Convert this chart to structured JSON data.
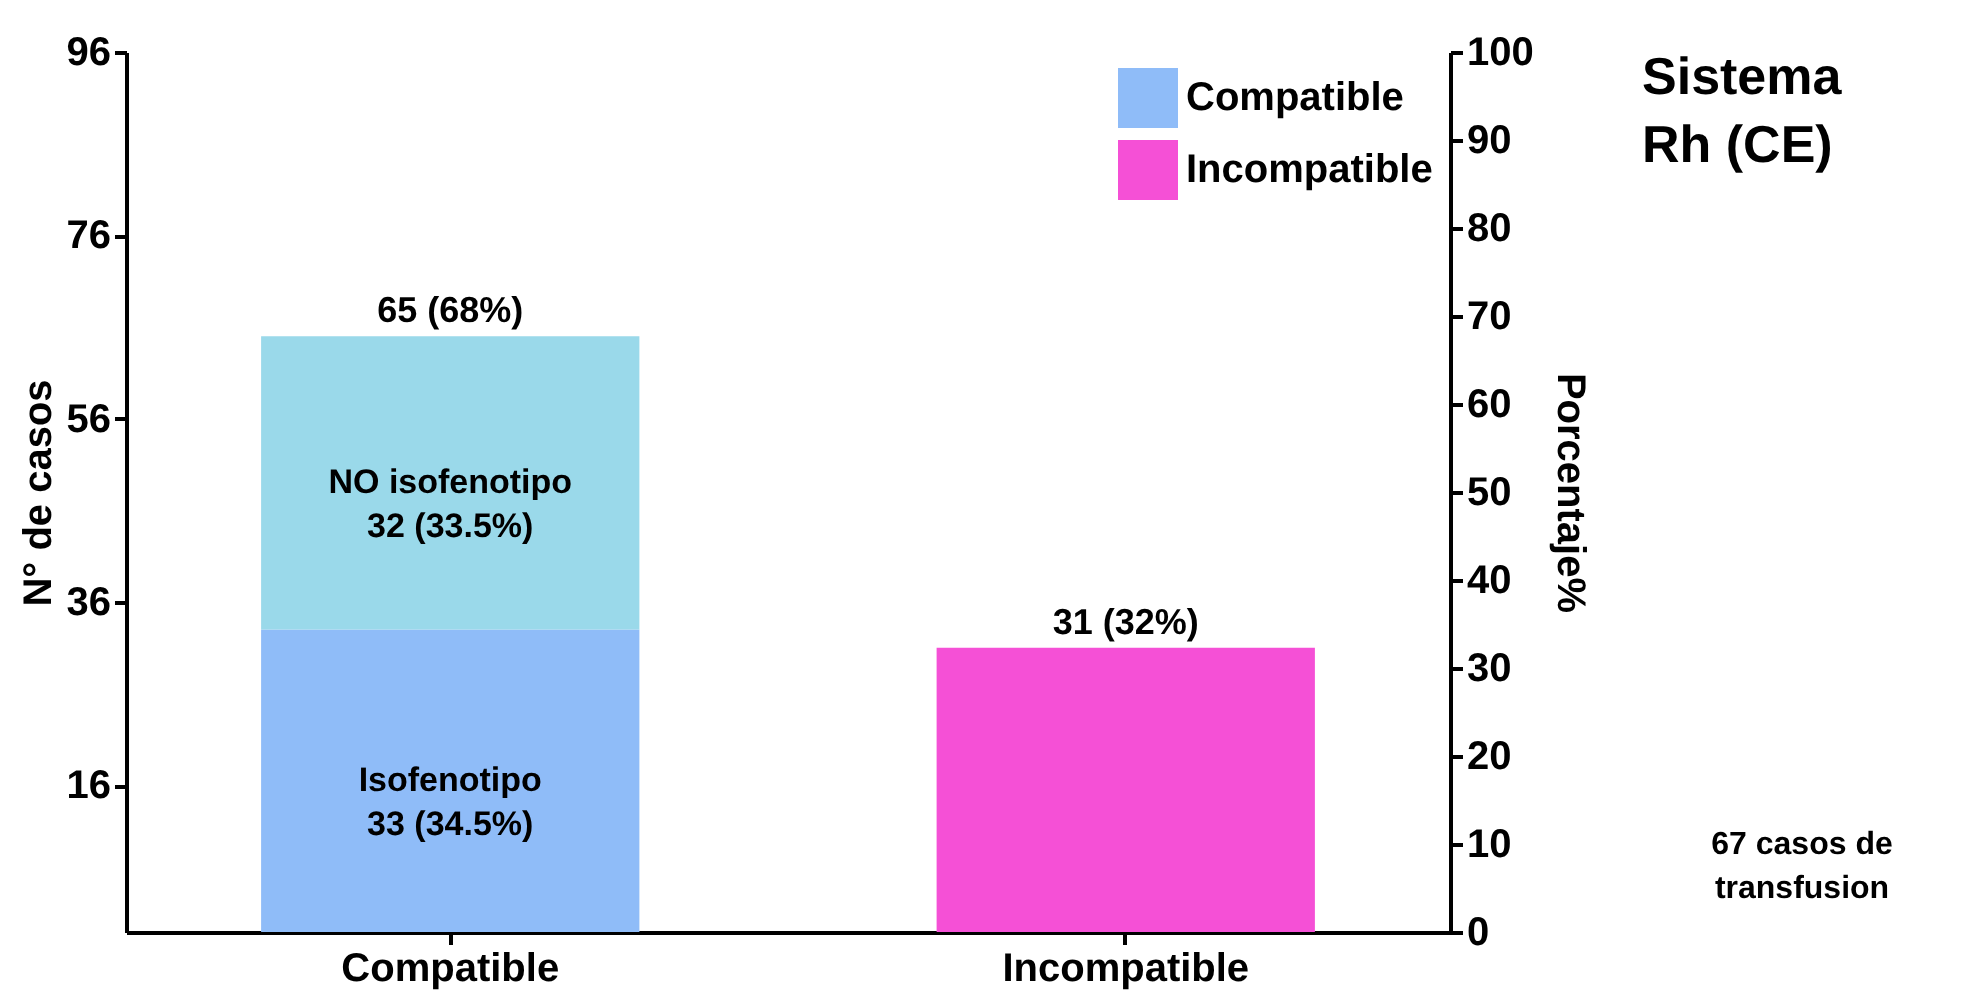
{
  "chart_data": {
    "type": "bar",
    "title": "Sistema Rh (CE)",
    "categories": [
      "Compatible",
      "Incompatible"
    ],
    "stacked": true,
    "series": [
      {
        "name": "Compatible",
        "color": "#8fbcf8",
        "values": [
          33,
          null
        ],
        "value_labels": [
          "Isofenotipo\n33 (34.5%)",
          null
        ]
      },
      {
        "color": "#9ad9ea",
        "values": [
          32,
          null
        ],
        "value_labels": [
          "NO isofenotipo\n32 (33.5%)",
          null
        ]
      },
      {
        "name": "Incompatible",
        "color": "#f550d6",
        "values": [
          null,
          31
        ]
      }
    ],
    "totals": [
      "65 (68%)",
      "31 (32%)"
    ],
    "ylabel": "N° de casos",
    "ylim": [
      0,
      96
    ],
    "yticks": [
      16,
      36,
      56,
      76,
      96
    ],
    "y2label": "Porcentaje%",
    "y2lim": [
      0,
      100
    ],
    "y2ticks": [
      0,
      10,
      20,
      30,
      40,
      50,
      60,
      70,
      80,
      90,
      100
    ],
    "legend": "top right",
    "annotations": [
      "67 casos de transfusion"
    ]
  }
}
